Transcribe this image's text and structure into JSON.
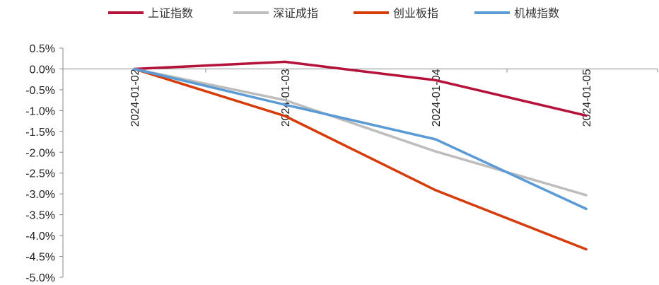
{
  "chart_data": {
    "type": "line",
    "title": "",
    "xlabel": "",
    "ylabel": "",
    "categories": [
      "2024-01-02",
      "2024-01-03",
      "2024-01-04",
      "2024-01-05"
    ],
    "ylim": [
      -5.0,
      0.5
    ],
    "y_ticks": [
      "0.5%",
      "0.0%",
      "-0.5%",
      "-1.0%",
      "-1.5%",
      "-2.0%",
      "-2.5%",
      "-3.0%",
      "-3.5%",
      "-4.0%",
      "-4.5%",
      "-5.0%"
    ],
    "legend_position": "top",
    "grid": false,
    "series": [
      {
        "name": "上证指数",
        "color": "#b5123a",
        "values": [
          0.0,
          0.17,
          -0.27,
          -1.12
        ]
      },
      {
        "name": "深证成指",
        "color": "#bdbdbd",
        "values": [
          0.0,
          -0.75,
          -1.98,
          -3.03
        ]
      },
      {
        "name": "创业板指",
        "color": "#d63c0a",
        "values": [
          0.0,
          -1.13,
          -2.91,
          -4.33
        ]
      },
      {
        "name": "机械指数",
        "color": "#5b9bd5",
        "values": [
          0.0,
          -0.86,
          -1.69,
          -3.36
        ]
      }
    ]
  }
}
